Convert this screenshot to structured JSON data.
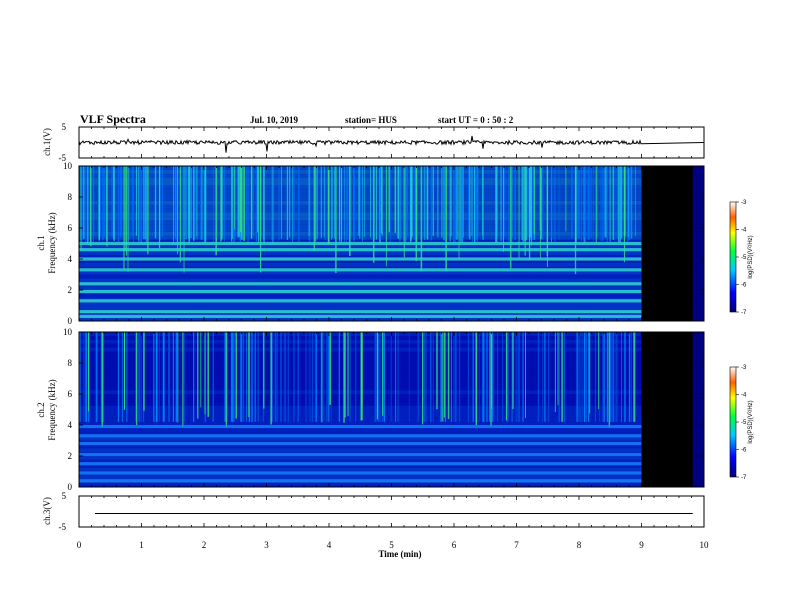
{
  "header": {
    "title": "VLF Spectra",
    "date": "Jul. 10, 2019",
    "station": "station= HUS",
    "start": "start UT = 0 : 50 : 2"
  },
  "chart_data": [
    {
      "type": "line",
      "ylabel": "ch.1(V)",
      "ylim": [
        -5,
        5
      ],
      "yticks": [
        "5",
        "-5"
      ],
      "x_range": [
        0,
        10
      ],
      "data_end_min": 9.0,
      "baseline_v": 0.0
    },
    {
      "type": "heatmap",
      "ylabel": "ch.1\nFrequency (kHz)",
      "ylim": [
        0,
        10
      ],
      "yticks": [
        "0",
        "2",
        "4",
        "6",
        "8",
        "10"
      ],
      "x_range": [
        0,
        10
      ],
      "data_end_min": 9.0,
      "blank_end_min": 9.82,
      "colorbar": {
        "label": "log(PSD)(V²/Hz)",
        "range": [
          -7,
          -3
        ],
        "ticks": [
          "-3",
          "-4",
          "-5",
          "-6",
          "-7"
        ]
      },
      "bands_khz": [
        0.3,
        0.6,
        1.3,
        1.9,
        2.4,
        3.3,
        4.0,
        4.6,
        5.0
      ]
    },
    {
      "type": "heatmap",
      "ylabel": "ch.2\nFrequency (kHz)",
      "ylim": [
        0,
        10
      ],
      "yticks": [
        "0",
        "2",
        "4",
        "6",
        "8",
        "10"
      ],
      "x_range": [
        0,
        10
      ],
      "data_end_min": 9.0,
      "blank_end_min": 9.82,
      "colorbar": {
        "label": "log(PSD)(V²/Hz)",
        "range": [
          -7,
          -3
        ],
        "ticks": [
          "-3",
          "-4",
          "-5",
          "-6",
          "-7"
        ]
      },
      "bands_khz": [
        0.4,
        0.9,
        1.5,
        2.1,
        2.8,
        3.3,
        3.9
      ]
    },
    {
      "type": "line",
      "ylabel": "ch.3(V)",
      "ylim": [
        -5,
        5
      ],
      "yticks": [
        "5",
        "-5"
      ],
      "x_range": [
        0,
        10
      ],
      "data_end_min": 9.82,
      "baseline_v": 0.0
    }
  ],
  "xaxis": {
    "label": "Time (min)",
    "ticks": [
      "0",
      "1",
      "2",
      "3",
      "4",
      "5",
      "6",
      "7",
      "8",
      "9",
      "10"
    ]
  },
  "colors": {
    "background": "#000080",
    "band": "#2fd6d0",
    "burst": "#33e07a",
    "blank": "#000000"
  }
}
